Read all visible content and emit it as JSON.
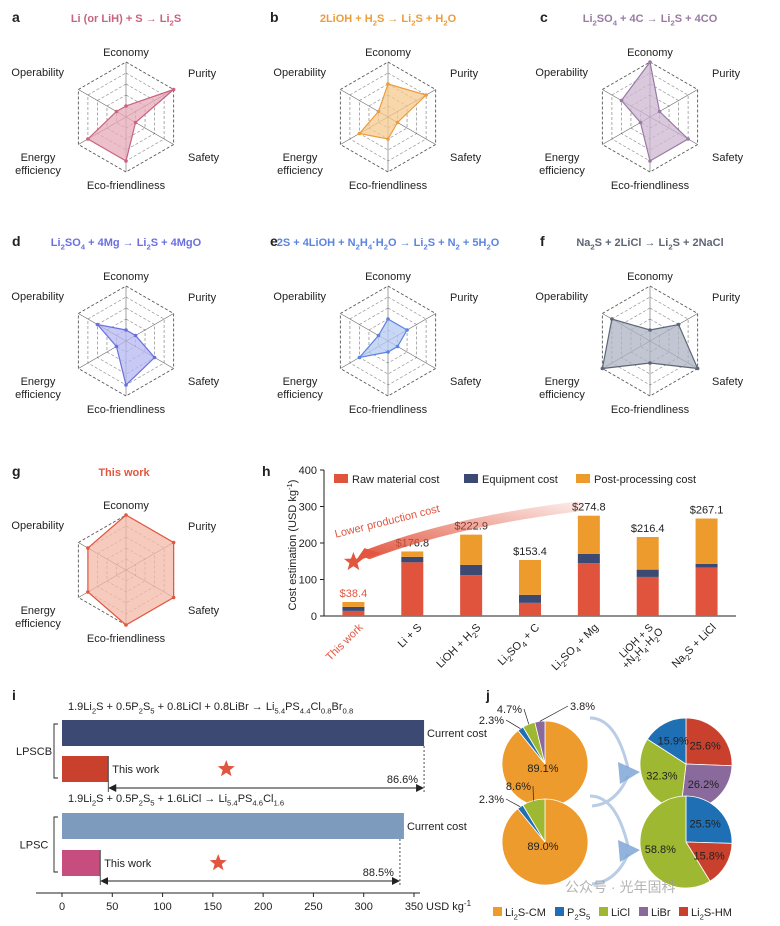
{
  "panel_letters": [
    "a",
    "b",
    "c",
    "d",
    "e",
    "f",
    "g",
    "h",
    "i",
    "j"
  ],
  "radar_axes": [
    "Economy",
    "Purity",
    "Safety",
    "Eco-friendliness",
    "Energy efficiency",
    "Operability"
  ],
  "radar_levels": 5,
  "radars": [
    {
      "letter": "a",
      "title_parts": [
        {
          "t": "Li (or LiH) + S → Li"
        },
        {
          "t": "2",
          "s": "sub"
        },
        {
          "t": "S"
        }
      ],
      "color": "#c9637f",
      "fill": "#e6a9b9",
      "values": [
        1,
        5,
        1,
        4,
        4,
        1
      ]
    },
    {
      "letter": "b",
      "title_parts": [
        {
          "t": "2LiOH + H"
        },
        {
          "t": "2",
          "s": "sub"
        },
        {
          "t": "S → Li"
        },
        {
          "t": "2",
          "s": "sub"
        },
        {
          "t": "S + H"
        },
        {
          "t": "2",
          "s": "sub"
        },
        {
          "t": "O"
        }
      ],
      "color": "#eb9d3c",
      "fill": "#f6c98f",
      "values": [
        3,
        4,
        1,
        2,
        3,
        1
      ]
    },
    {
      "letter": "c",
      "title_parts": [
        {
          "t": "Li"
        },
        {
          "t": "2",
          "s": "sub"
        },
        {
          "t": "SO"
        },
        {
          "t": "4",
          "s": "sub"
        },
        {
          "t": " + 4C → Li"
        },
        {
          "t": "2",
          "s": "sub"
        },
        {
          "t": "S + 4CO"
        }
      ],
      "color": "#9a7aa3",
      "fill": "#cdb6d2",
      "values": [
        5,
        1,
        4,
        4,
        1,
        3
      ]
    },
    {
      "letter": "d",
      "title_parts": [
        {
          "t": "Li"
        },
        {
          "t": "2",
          "s": "sub"
        },
        {
          "t": "SO"
        },
        {
          "t": "4",
          "s": "sub"
        },
        {
          "t": " + 4Mg → Li"
        },
        {
          "t": "2",
          "s": "sub"
        },
        {
          "t": "S + 4MgO"
        }
      ],
      "color": "#6a6fe0",
      "fill": "#b5b8f2",
      "values": [
        1,
        1,
        3,
        4,
        1,
        3
      ]
    },
    {
      "letter": "e",
      "title_parts": [
        {
          "t": "2S + 4LiOH + N"
        },
        {
          "t": "2",
          "s": "sub"
        },
        {
          "t": "H"
        },
        {
          "t": "4",
          "s": "sub"
        },
        {
          "t": "·H"
        },
        {
          "t": "2",
          "s": "sub"
        },
        {
          "t": "O → Li"
        },
        {
          "t": "2",
          "s": "sub"
        },
        {
          "t": "S + N"
        },
        {
          "t": "2",
          "s": "sub"
        },
        {
          "t": " + 5H"
        },
        {
          "t": "2",
          "s": "sub"
        },
        {
          "t": "O"
        }
      ],
      "color": "#5b84e0",
      "fill": "#b6c9f2",
      "values": [
        2,
        2,
        1,
        1,
        3,
        1
      ]
    },
    {
      "letter": "f",
      "title_parts": [
        {
          "t": "Na"
        },
        {
          "t": "2",
          "s": "sub"
        },
        {
          "t": "S + 2LiCl → Li"
        },
        {
          "t": "2",
          "s": "sub"
        },
        {
          "t": "S + 2NaCl"
        }
      ],
      "color": "#5d6675",
      "fill": "#aeb3c4",
      "values": [
        1,
        3,
        5,
        2,
        5,
        4
      ]
    },
    {
      "letter": "g",
      "title_parts": [
        {
          "t": "This work"
        }
      ],
      "color": "#e2563f",
      "fill": "#f4b8a8",
      "values": [
        5,
        5,
        5,
        5,
        4,
        4
      ]
    }
  ],
  "chart_data": [
    {
      "panel": "h",
      "type": "bar",
      "stacked": true,
      "ylabel_parts": [
        {
          "t": "Cost estimation (USD kg"
        },
        {
          "t": "-1",
          "s": "sup"
        },
        {
          "t": ")"
        }
      ],
      "ylim": [
        0,
        400
      ],
      "yticks": [
        0,
        100,
        200,
        300,
        400
      ],
      "categories": [
        {
          "parts": [
            {
              "t": "This work"
            }
          ],
          "color": "#e2563f"
        },
        {
          "parts": [
            {
              "t": "Li + S"
            }
          ]
        },
        {
          "parts": [
            {
              "t": "LiOH + H"
            },
            {
              "t": "2",
              "s": "sub"
            },
            {
              "t": "S"
            }
          ]
        },
        {
          "parts": [
            {
              "t": "Li"
            },
            {
              "t": "2",
              "s": "sub"
            },
            {
              "t": "SO"
            },
            {
              "t": "4",
              "s": "sub"
            },
            {
              "t": " + C"
            }
          ]
        },
        {
          "parts": [
            {
              "t": "Li"
            },
            {
              "t": "2",
              "s": "sub"
            },
            {
              "t": "SO"
            },
            {
              "t": "4",
              "s": "sub"
            },
            {
              "t": " + Mg"
            }
          ]
        },
        {
          "parts": [
            {
              "t": "LiOH + S"
            }
          ],
          "parts2": [
            {
              "t": "+N"
            },
            {
              "t": "2",
              "s": "sub"
            },
            {
              "t": "H"
            },
            {
              "t": "4",
              "s": "sub"
            },
            {
              "t": "·H"
            },
            {
              "t": "2",
              "s": "sub"
            },
            {
              "t": "O"
            }
          ]
        },
        {
          "parts": [
            {
              "t": "Na"
            },
            {
              "t": "2",
              "s": "sub"
            },
            {
              "t": "S + LiCl"
            }
          ]
        }
      ],
      "series": [
        {
          "name": "Raw material cost",
          "color": "#e0533d",
          "values": [
            14,
            147,
            112,
            36,
            145,
            107,
            133
          ]
        },
        {
          "name": "Equipment cost",
          "color": "#3c4a73",
          "values": [
            11,
            15,
            28,
            22,
            25,
            20,
            10
          ]
        },
        {
          "name": "Post-processing cost",
          "color": "#ed9b2c",
          "values": [
            13.4,
            14.8,
            82.9,
            95.4,
            104.8,
            89.4,
            124.1
          ]
        }
      ],
      "totals": [
        38.4,
        176.8,
        222.9,
        153.4,
        274.8,
        216.4,
        267.1
      ],
      "total_labels": [
        "$38.4",
        "$176.8",
        "$222.9",
        "$153.4",
        "$274.8",
        "$216.4",
        "$267.1"
      ],
      "annotation": "Lower production cost",
      "legend_position": "top"
    },
    {
      "panel": "i",
      "type": "bar",
      "orientation": "horizontal",
      "xlabel": "USD kg",
      "xlabel_sup": "-1",
      "xlim": [
        0,
        350
      ],
      "xticks": [
        0,
        50,
        100,
        150,
        200,
        250,
        300,
        350
      ],
      "groups": [
        {
          "label": "LPSCB",
          "equation_parts": [
            {
              "t": "1.9Li"
            },
            {
              "t": "2",
              "s": "sub"
            },
            {
              "t": "S + 0.5P"
            },
            {
              "t": "2",
              "s": "sub"
            },
            {
              "t": "S"
            },
            {
              "t": "5",
              "s": "sub"
            },
            {
              "t": " + 0.8LiCl + 0.8LiBr → Li"
            },
            {
              "t": "5.4",
              "s": "sub"
            },
            {
              "t": "PS"
            },
            {
              "t": "4.4",
              "s": "sub"
            },
            {
              "t": "Cl"
            },
            {
              "t": "0.8",
              "s": "sub"
            },
            {
              "t": "Br"
            },
            {
              "t": "0.8",
              "s": "sub"
            }
          ],
          "current_label": "Current cost",
          "current_value": 360,
          "current_color": "#3c4a73",
          "work_label": "This work",
          "work_value": 46,
          "work_color": "#c9412d",
          "reduction": "86.6%"
        },
        {
          "label": "LPSC",
          "equation_parts": [
            {
              "t": "1.9Li"
            },
            {
              "t": "2",
              "s": "sub"
            },
            {
              "t": "S + 0.5P"
            },
            {
              "t": "2",
              "s": "sub"
            },
            {
              "t": "S"
            },
            {
              "t": "5",
              "s": "sub"
            },
            {
              "t": " + 1.6LiCl → Li"
            },
            {
              "t": "5.4",
              "s": "sub"
            },
            {
              "t": "PS"
            },
            {
              "t": "4.6",
              "s": "sub"
            },
            {
              "t": "Cl"
            },
            {
              "t": "1.6",
              "s": "sub"
            }
          ],
          "current_label": "Current cost",
          "current_value": 340,
          "current_color": "#7d9bbd",
          "work_label": "This work",
          "work_value": 38,
          "work_color": "#c74d7e",
          "reduction": "88.5%"
        }
      ]
    },
    {
      "panel": "j",
      "type": "pie",
      "legend": [
        {
          "parts": [
            {
              "t": "Li"
            },
            {
              "t": "2",
              "s": "sub"
            },
            {
              "t": "S-CM"
            }
          ],
          "color": "#ed9b2c"
        },
        {
          "parts": [
            {
              "t": "P"
            },
            {
              "t": "2",
              "s": "sub"
            },
            {
              "t": "S"
            },
            {
              "t": "5",
              "s": "sub"
            }
          ],
          "color": "#1f6fb4"
        },
        {
          "parts": [
            {
              "t": "LiCl"
            }
          ],
          "color": "#9fb832"
        },
        {
          "parts": [
            {
              "t": "LiBr"
            }
          ],
          "color": "#8a6a9c"
        },
        {
          "parts": [
            {
              "t": "Li"
            },
            {
              "t": "2",
              "s": "sub"
            },
            {
              "t": "S-HM"
            }
          ],
          "color": "#c9412d"
        }
      ],
      "pies": [
        {
          "role": "current",
          "group": "LPSCB",
          "slices": [
            {
              "name": "Li2S-CM",
              "value": 89.1,
              "label": "89.1%",
              "color": "#ed9b2c"
            },
            {
              "name": "P2S5",
              "value": 2.3,
              "label": "2.3%",
              "color": "#1f6fb4"
            },
            {
              "name": "LiCl",
              "value": 4.7,
              "label": "4.7%",
              "color": "#9fb832"
            },
            {
              "name": "LiBr",
              "value": 3.8,
              "label": "3.8%",
              "color": "#8a6a9c"
            }
          ]
        },
        {
          "role": "this-work",
          "group": "LPSCB",
          "slices": [
            {
              "name": "Li2S-HM",
              "value": 25.6,
              "label": "25.6%",
              "color": "#c9412d"
            },
            {
              "name": "LiBr",
              "value": 26.2,
              "label": "26.2%",
              "color": "#8a6a9c"
            },
            {
              "name": "LiCl",
              "value": 32.3,
              "label": "32.3%",
              "color": "#9fb832"
            },
            {
              "name": "P2S5",
              "value": 15.9,
              "label": "15.9%",
              "color": "#1f6fb4"
            }
          ]
        },
        {
          "role": "current",
          "group": "LPSC",
          "slices": [
            {
              "name": "Li2S-CM",
              "value": 89.0,
              "label": "89.0%",
              "color": "#ed9b2c"
            },
            {
              "name": "P2S5",
              "value": 2.3,
              "label": "2.3%",
              "color": "#1f6fb4"
            },
            {
              "name": "LiCl",
              "value": 8.6,
              "label": "8.6%",
              "color": "#9fb832"
            }
          ]
        },
        {
          "role": "this-work",
          "group": "LPSC",
          "slices": [
            {
              "name": "P2S5",
              "value": 25.5,
              "label": "25.5%",
              "color": "#1f6fb4"
            },
            {
              "name": "Li2S-HM",
              "value": 15.8,
              "label": "15.8%",
              "color": "#c9412d"
            },
            {
              "name": "LiCl",
              "value": 58.8,
              "label": "58.8%",
              "color": "#9fb832"
            }
          ]
        }
      ]
    }
  ],
  "watermark": "公众号 · 光年固科"
}
